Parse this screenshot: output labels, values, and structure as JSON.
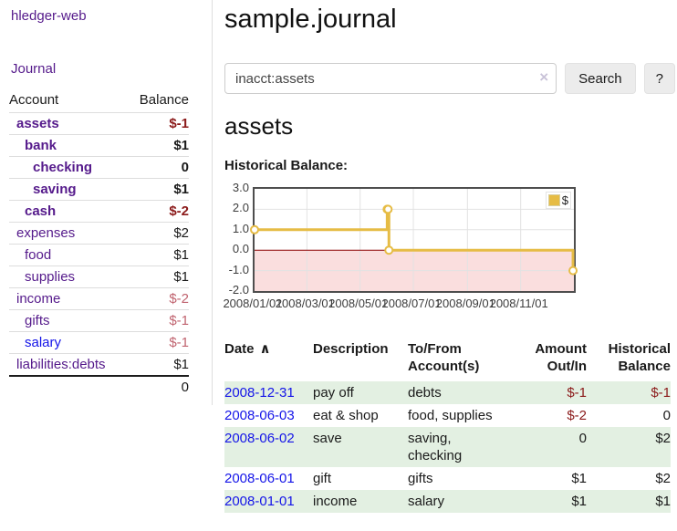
{
  "app": {
    "title": "hledger-web"
  },
  "colors": {
    "link_purple": "#551a8b",
    "link_blue": "#1414e8",
    "negative_strong": "#8b1a1a",
    "negative_muted": "#c0636f",
    "row_stripe_green": "#e3f0e2",
    "chart_gold": "#e6bc45"
  },
  "sidebar": {
    "journal_label": "Journal",
    "headers": [
      "Account",
      "Balance"
    ],
    "accounts": [
      {
        "name": "assets",
        "indent": 1,
        "bold": true,
        "balance": "$-1",
        "negative": true,
        "muted": false,
        "link": "purple"
      },
      {
        "name": "bank",
        "indent": 2,
        "bold": true,
        "balance": "$1",
        "negative": false,
        "muted": false,
        "link": "purple"
      },
      {
        "name": "checking",
        "indent": 3,
        "bold": true,
        "balance": "0",
        "negative": false,
        "muted": false,
        "link": "purple"
      },
      {
        "name": "saving",
        "indent": 3,
        "bold": true,
        "balance": "$1",
        "negative": false,
        "muted": false,
        "link": "purple"
      },
      {
        "name": "cash",
        "indent": 2,
        "bold": true,
        "balance": "$-2",
        "negative": true,
        "muted": false,
        "link": "purple"
      },
      {
        "name": "expenses",
        "indent": 1,
        "bold": false,
        "balance": "$2",
        "negative": false,
        "muted": false,
        "link": "purple"
      },
      {
        "name": "food",
        "indent": 2,
        "bold": false,
        "balance": "$1",
        "negative": false,
        "muted": false,
        "link": "purple"
      },
      {
        "name": "supplies",
        "indent": 2,
        "bold": false,
        "balance": "$1",
        "negative": false,
        "muted": false,
        "link": "purple"
      },
      {
        "name": "income",
        "indent": 1,
        "bold": false,
        "balance": "$-2",
        "negative": true,
        "muted": true,
        "link": "purple"
      },
      {
        "name": "gifts",
        "indent": 2,
        "bold": false,
        "balance": "$-1",
        "negative": true,
        "muted": true,
        "link": "purple"
      },
      {
        "name": "salary",
        "indent": 2,
        "bold": false,
        "balance": "$-1",
        "negative": true,
        "muted": true,
        "link": "blue"
      },
      {
        "name": "liabilities:debts",
        "indent": 1,
        "bold": false,
        "balance": "$1",
        "negative": false,
        "muted": false,
        "link": "purple"
      }
    ],
    "total": "0"
  },
  "main": {
    "title": "sample.journal",
    "search": {
      "value": "inacct:assets",
      "clear_icon": "×",
      "button_label": "Search",
      "help_label": "?"
    },
    "account_heading": "assets"
  },
  "chart_data": {
    "type": "line",
    "step": true,
    "title": "Historical Balance:",
    "series": [
      {
        "name": "$",
        "color": "#e6bc45",
        "points": [
          [
            "2008-01-01",
            1
          ],
          [
            "2008-06-01",
            2
          ],
          [
            "2008-06-02",
            2
          ],
          [
            "2008-06-03",
            0
          ],
          [
            "2008-12-31",
            -1
          ]
        ]
      }
    ],
    "ylim": [
      -2,
      3
    ],
    "yticks": [
      3.0,
      2.0,
      1.0,
      0.0,
      -1.0,
      -2.0
    ],
    "xticks": [
      "2008/01/01",
      "2008/03/01",
      "2008/05/01",
      "2008/07/01",
      "2008/09/01",
      "2008/11/01"
    ],
    "grid": true,
    "legend_position": "top-right",
    "negative_region_color": "#fadede",
    "zero_line_color": "#8b0000",
    "grid_color": "#e2e2e2"
  },
  "register": {
    "sort_label": "Date",
    "sort_icon": "∧",
    "headers": [
      "Description",
      "To/From\nAccount(s)",
      "Amount\nOut/In",
      "Historical\nBalance"
    ],
    "rows": [
      {
        "date": "2008-12-31",
        "description": "pay off",
        "accounts": "debts",
        "amount": "$-1",
        "amount_negative": true,
        "balance": "$-1",
        "balance_negative": true
      },
      {
        "date": "2008-06-03",
        "description": "eat & shop",
        "accounts": "food, supplies",
        "amount": "$-2",
        "amount_negative": true,
        "balance": "0",
        "balance_negative": false
      },
      {
        "date": "2008-06-02",
        "description": "save",
        "accounts": "saving, checking",
        "amount": "0",
        "amount_negative": false,
        "balance": "$2",
        "balance_negative": false
      },
      {
        "date": "2008-06-01",
        "description": "gift",
        "accounts": "gifts",
        "amount": "$1",
        "amount_negative": false,
        "balance": "$2",
        "balance_negative": false
      },
      {
        "date": "2008-01-01",
        "description": "income",
        "accounts": "salary",
        "amount": "$1",
        "amount_negative": false,
        "balance": "$1",
        "balance_negative": false
      }
    ]
  }
}
